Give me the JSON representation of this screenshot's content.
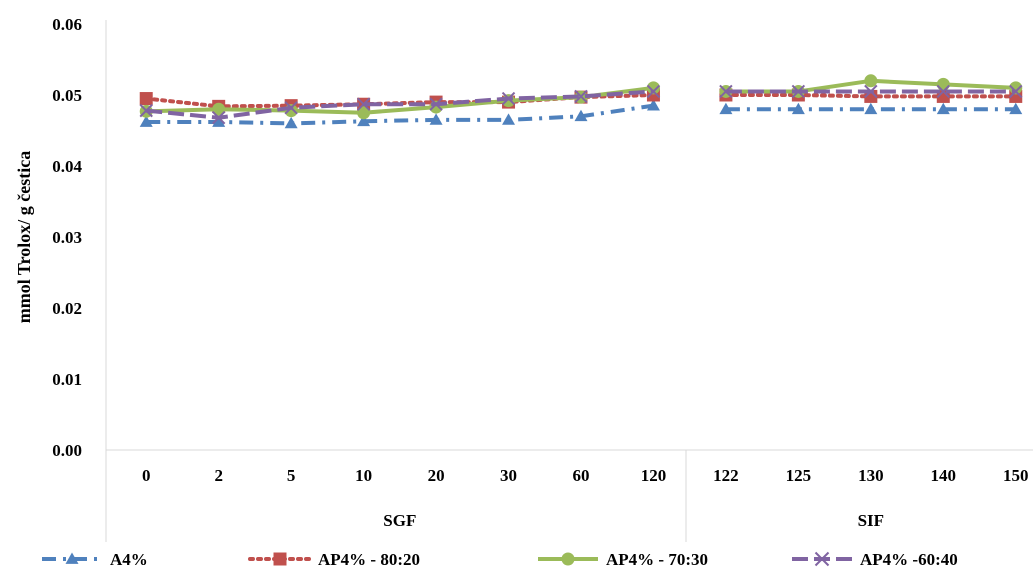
{
  "chart_data": {
    "type": "line",
    "title": "",
    "xlabel": "",
    "ylabel": "mmol Trolox/ g čestica",
    "ylim": [
      0,
      0.06
    ],
    "y_ticks": [
      "0.00",
      "0.01",
      "0.02",
      "0.03",
      "0.04",
      "0.05",
      "0.06"
    ],
    "y_tick_values": [
      0,
      0.01,
      0.02,
      0.03,
      0.04,
      0.05,
      0.06
    ],
    "grid": false,
    "legend_position": "bottom",
    "groups": [
      {
        "name": "SGF",
        "categories": [
          "0",
          "2",
          "5",
          "10",
          "20",
          "30",
          "60",
          "120"
        ]
      },
      {
        "name": "SIF",
        "categories": [
          "122",
          "125",
          "130",
          "140",
          "150"
        ]
      }
    ],
    "series": [
      {
        "name": "A4%",
        "color": "#4f81bd",
        "marker": "triangle",
        "line_style": "dash-dot",
        "sgf_values": [
          0.0462,
          0.0462,
          0.046,
          0.0463,
          0.0465,
          0.0465,
          0.047,
          0.0485
        ],
        "sif_values": [
          0.048,
          0.048,
          0.048,
          0.048,
          0.048
        ]
      },
      {
        "name": "AP4% - 80:20",
        "color": "#c0504d",
        "marker": "square",
        "line_style": "dotted",
        "sgf_values": [
          0.0495,
          0.0484,
          0.0485,
          0.0487,
          0.049,
          0.049,
          0.0497,
          0.05
        ],
        "sif_values": [
          0.05,
          0.05,
          0.0498,
          0.0498,
          0.0498
        ]
      },
      {
        "name": "AP4% - 70:30",
        "color": "#9bbb59",
        "marker": "circle",
        "line_style": "solid",
        "sgf_values": [
          0.0477,
          0.048,
          0.0478,
          0.0475,
          0.0483,
          0.0492,
          0.0497,
          0.051
        ],
        "sif_values": [
          0.0505,
          0.0505,
          0.052,
          0.0515,
          0.051
        ]
      },
      {
        "name": "AP4% -60:40",
        "color": "#8064a2",
        "marker": "x",
        "line_style": "long-dash",
        "sgf_values": [
          0.0478,
          0.0468,
          0.0482,
          0.0487,
          0.0487,
          0.0495,
          0.0498,
          0.0505
        ],
        "sif_values": [
          0.0505,
          0.0505,
          0.0505,
          0.0505,
          0.0505
        ]
      }
    ]
  }
}
